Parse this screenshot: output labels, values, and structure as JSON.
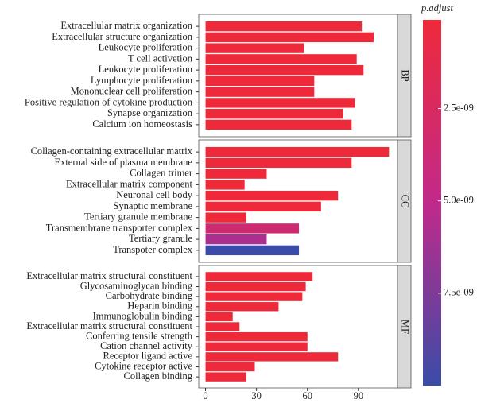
{
  "chart_data": {
    "type": "bar",
    "orientation": "horizontal",
    "xlim": [
      -4,
      113
    ],
    "xticks": [
      0,
      30,
      60,
      90
    ],
    "facets": [
      {
        "name": "BP",
        "categories": [
          "Extracellular matrix organization",
          "Extracellular structure organization",
          "Leukocyte proliferation",
          "T cell activetion",
          "Leukocyte proliferation",
          "Lymphocyte proliferation",
          "Mononuclear cell proliferation",
          "Positive regulation of cytokine production",
          "Synapse organization",
          "Calcium ion homeostasis"
        ],
        "values": [
          92,
          99,
          58,
          89,
          93,
          64,
          64,
          88,
          81,
          86
        ],
        "p_adjust": [
          1e-10,
          1e-10,
          1e-10,
          1e-10,
          1e-10,
          1e-10,
          1e-10,
          1e-10,
          1e-10,
          1e-10
        ]
      },
      {
        "name": "CC",
        "categories": [
          "Collagen-containing extracellular matrix",
          "External side of plasma membrane",
          "Collagen trimer",
          "Extracellular matrix component",
          "Neuronal cell body",
          "Synaptic membrane",
          "Tertiary granule membrane",
          "Transmembrane transporter complex",
          "Tertiary granule",
          "Transpoter complex"
        ],
        "values": [
          108,
          86,
          36,
          23,
          78,
          68,
          24,
          55,
          36,
          55
        ],
        "p_adjust": [
          1e-10,
          1e-10,
          1e-10,
          1e-10,
          1e-10,
          1e-10,
          1e-10,
          3.5e-09,
          5.8e-09,
          1e-08
        ]
      },
      {
        "name": "MF",
        "categories": [
          "Extracellular matrix structural constituent",
          "Glycosaminoglycan binding",
          "Carbohydrate binding",
          "Heparin binding",
          "Immunoglobulin binding",
          "Extracellular matrix structural constituent",
          "Conferring tensile strength",
          "Cation channel activity",
          "Receptor ligand active",
          "Cytokine receptor active",
          "Collagen binding"
        ],
        "values": [
          63,
          59,
          57,
          43,
          16,
          20,
          60,
          60,
          78,
          29,
          24
        ],
        "p_adjust": [
          1e-10,
          1e-10,
          1e-10,
          1e-10,
          1e-10,
          1e-10,
          1e-10,
          1e-10,
          1e-10,
          1e-10,
          1e-10
        ]
      }
    ],
    "colorbar": {
      "title": "p.adjust",
      "lim": [
        1e-10,
        1e-08
      ],
      "colors": [
        "#ee2a3a",
        "#c02a8a",
        "#3a4ca8"
      ],
      "ticks": [
        {
          "value": 2.5e-09,
          "label": "2.5e-09"
        },
        {
          "value": 5e-09,
          "label": "5.0e-09"
        },
        {
          "value": 7.5e-09,
          "label": "7.5e-09"
        }
      ]
    }
  }
}
